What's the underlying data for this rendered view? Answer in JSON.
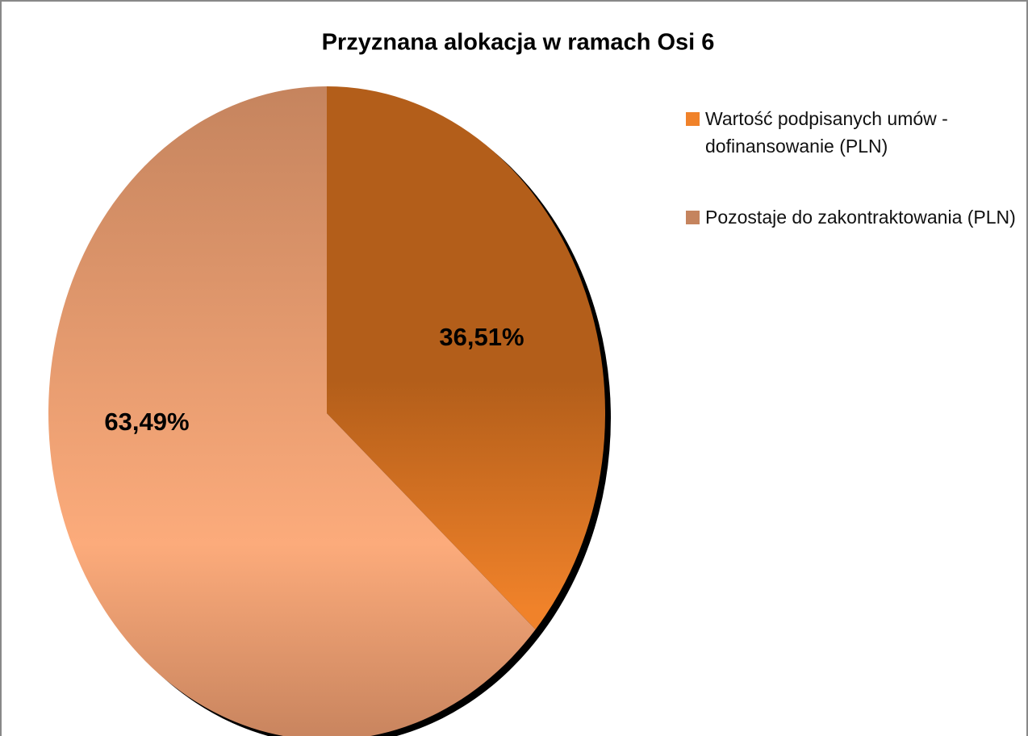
{
  "chart_data": {
    "type": "pie",
    "title": "Przyznana alokacja w ramach Osi 6",
    "categories": [
      "Wartość podpisanych umów - dofinansowanie (PLN)",
      "Pozostaje do zakontraktowania (PLN)"
    ],
    "values": [
      36.51,
      63.49
    ],
    "value_labels": [
      "36,51%",
      "63,49%"
    ],
    "colors": [
      "#f0822a",
      "#c5845e"
    ],
    "legend": "right"
  }
}
